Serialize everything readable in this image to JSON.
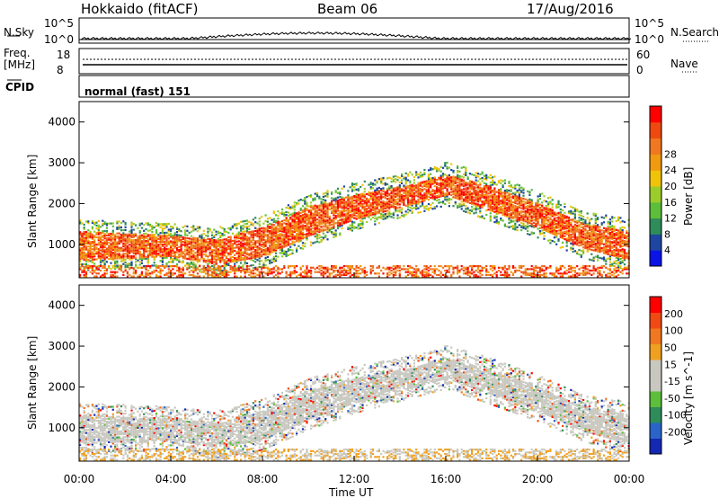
{
  "header": {
    "station": "Hokkaido (fitACF)",
    "beam": "Beam 06",
    "date": "17/Aug/2016"
  },
  "status_panel": {
    "nsky_label": "N.Sky",
    "nsearch_label": "N.Search",
    "noise_ticks": [
      "10^5",
      "10^0"
    ],
    "freq_label": "Freq.",
    "freq_unit": "[MHz]",
    "freq_ticks": [
      "18",
      "8"
    ],
    "nave_label": "Nave",
    "nave_ticks": [
      "60",
      "0"
    ],
    "cpid_label": "CPID",
    "cpid_value": "normal (fast) 151"
  },
  "chart_data": [
    {
      "type": "heatmap",
      "name": "power",
      "ylabel": "Slant Range [km]",
      "y_ticks": [
        1000,
        2000,
        3000,
        4000
      ],
      "ylim": [
        180,
        4500
      ],
      "xlim": [
        0,
        24
      ],
      "colorbar_label": "Power [dB]",
      "colorbar_ticks": [
        4,
        8,
        12,
        16,
        20,
        24,
        28
      ],
      "colors": [
        "#0a14e6",
        "#1e46a0",
        "#2e8c5a",
        "#5cbe3a",
        "#9ccc2a",
        "#f0c20a",
        "#f09a10",
        "#f07820",
        "#ee4a10",
        "#ff0000"
      ],
      "echo_bands": [
        {
          "t": 0,
          "lo": 600,
          "hi": 1300
        },
        {
          "t": 2,
          "lo": 650,
          "hi": 1250
        },
        {
          "t": 4,
          "lo": 700,
          "hi": 1200
        },
        {
          "t": 6,
          "lo": 500,
          "hi": 1100
        },
        {
          "t": 8,
          "lo": 700,
          "hi": 1400
        },
        {
          "t": 10,
          "lo": 1200,
          "hi": 1900
        },
        {
          "t": 12,
          "lo": 1600,
          "hi": 2200
        },
        {
          "t": 14,
          "lo": 1900,
          "hi": 2400
        },
        {
          "t": 16,
          "lo": 2200,
          "hi": 2700
        },
        {
          "t": 18,
          "lo": 1800,
          "hi": 2400
        },
        {
          "t": 20,
          "lo": 1400,
          "hi": 2000
        },
        {
          "t": 22,
          "lo": 900,
          "hi": 1500
        },
        {
          "t": 24,
          "lo": 600,
          "hi": 1300
        }
      ]
    },
    {
      "type": "heatmap",
      "name": "velocity",
      "xlabel": "Time UT",
      "ylabel": "Slant Range [km]",
      "x_ticks": [
        "00:00",
        "04:00",
        "08:00",
        "12:00",
        "16:00",
        "20:00",
        "00:00"
      ],
      "y_ticks": [
        1000,
        2000,
        3000,
        4000
      ],
      "ylim": [
        180,
        4500
      ],
      "xlim": [
        0,
        24
      ],
      "colorbar_label": "Velocity [m s^-1]",
      "colorbar_ticks": [
        200,
        100,
        50,
        15,
        -15,
        -50,
        -100,
        -200
      ],
      "colors": [
        "#1428b4",
        "#2a64c8",
        "#2e8c5a",
        "#5cbe3a",
        "#c8c8c0",
        "#c8c8c0",
        "#f0a020",
        "#f07820",
        "#f04a14",
        "#ff0000"
      ]
    }
  ]
}
